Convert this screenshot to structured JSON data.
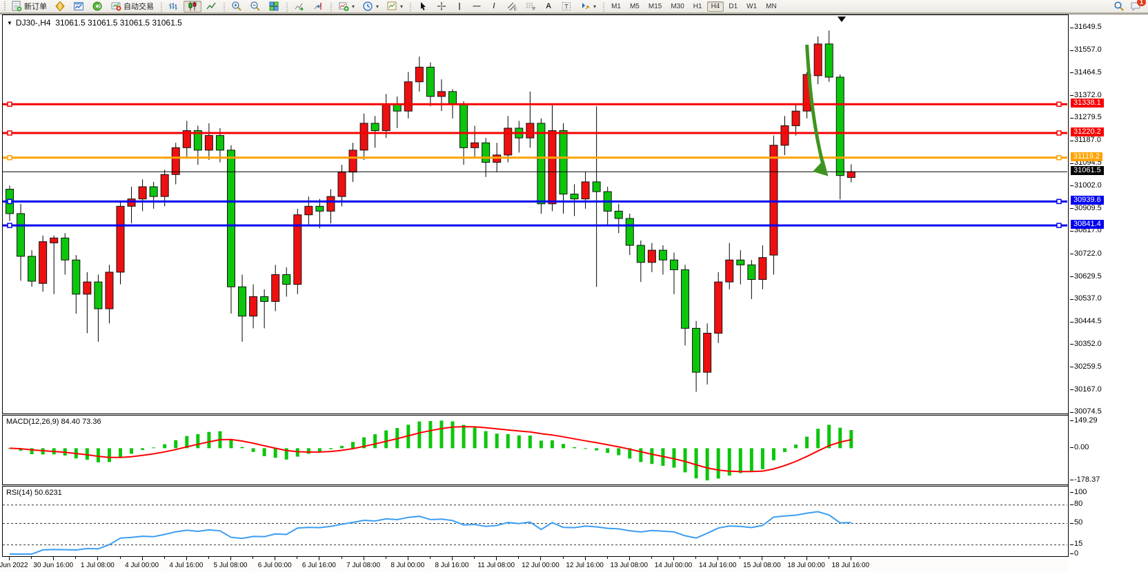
{
  "toolbar": {
    "new_order_label": "新订单",
    "autotrading_label": "自动交易",
    "timeframes": [
      "M1",
      "M5",
      "M15",
      "M30",
      "H1",
      "H4",
      "D1",
      "W1",
      "MN"
    ],
    "active_timeframe": "H4",
    "chat_badge": "1",
    "tool_glyphs": {
      "vline": "|",
      "hline": "—",
      "trendline": "/",
      "channel": "∥",
      "fibo": "F",
      "text": "A",
      "label": "T"
    }
  },
  "chart": {
    "symbol_period": "DJ30-,H4",
    "ohlc_text": "31061.5 31061.5 31061.5 31061.5"
  },
  "macd_panel": {
    "label": "MACD(12,26,9)",
    "values": "84.40 73.36"
  },
  "rsi_panel": {
    "label": "RSI(14)",
    "value": "50.6231"
  },
  "chart_data": {
    "type": "candlestick",
    "symbol": "DJ30-",
    "timeframe": "H4",
    "title": "DJ30-,H4 31061.5 31061.5 31061.5 31061.5",
    "ylim": [
      30071,
      31703
    ],
    "price_ticks": [
      "31649.5",
      "31557.0",
      "31464.5",
      "31372.0",
      "31279.5",
      "31187.0",
      "31094.5",
      "31002.0",
      "30909.5",
      "30817.0",
      "30722.0",
      "30629.5",
      "30537.0",
      "30444.5",
      "30352.0",
      "30259.5",
      "30167.0",
      "30074.5"
    ],
    "time_labels": [
      "30 Jun 2022",
      "30 Jun 16:00",
      "1 Jul 08:00",
      "4 Jul 00:00",
      "4 Jul 16:00",
      "5 Jul 08:00",
      "6 Jul 00:00",
      "6 Jul 16:00",
      "7 Jul 08:00",
      "8 Jul 00:00",
      "8 Jul 16:00",
      "11 Jul 08:00",
      "12 Jul 00:00",
      "12 Jul 16:00",
      "13 Jul 08:00",
      "14 Jul 00:00",
      "14 Jul 16:00",
      "15 Jul 08:00",
      "18 Jul 00:00",
      "18 Jul 16:00"
    ],
    "label_every_bars": 4,
    "colors": {
      "up": "#ee1010",
      "down": "#0cc60c",
      "wick": "#000000",
      "macd_hist": "#0cc60c",
      "macd_signal": "#fe0000",
      "rsi_line": "#3b9df2"
    },
    "hlines": [
      {
        "price": 31338.1,
        "color": "#f60000",
        "width": 3,
        "label": "31338.1",
        "handles": true
      },
      {
        "price": 31220.2,
        "color": "#f60000",
        "width": 3,
        "label": "31220.2",
        "handles": true
      },
      {
        "price": 31119.2,
        "color": "#ffa200",
        "width": 3,
        "label": "31119.2",
        "handles": true
      },
      {
        "price": 31061.5,
        "color": "#000000",
        "width": 1,
        "label": "31061.5",
        "handles": false
      },
      {
        "price": 30939.6,
        "color": "#0000f0",
        "width": 3,
        "label": "30939.6",
        "handles": true
      },
      {
        "price": 30841.4,
        "color": "#0000f0",
        "width": 3,
        "label": "30841.4",
        "handles": true
      }
    ],
    "current_price": 31061.5,
    "arrow": {
      "from_bar": 72.0,
      "from_price": 31582,
      "to_bar": 73.55,
      "to_price": 31075,
      "color": "#3e9420"
    },
    "ohlc": [
      [
        30990,
        31005,
        30860,
        30890
      ],
      [
        30890,
        30930,
        30615,
        30715
      ],
      [
        30715,
        30740,
        30590,
        30613
      ],
      [
        30604,
        30800,
        30570,
        30775
      ],
      [
        30770,
        30800,
        30560,
        30790
      ],
      [
        30790,
        30810,
        30640,
        30700
      ],
      [
        30700,
        30720,
        30480,
        30560
      ],
      [
        30560,
        30650,
        30400,
        30610
      ],
      [
        30610,
        30640,
        30365,
        30500
      ],
      [
        30500,
        30680,
        30440,
        30650
      ],
      [
        30650,
        30940,
        30600,
        30920
      ],
      [
        30920,
        31000,
        30850,
        30950
      ],
      [
        30950,
        31030,
        30900,
        31000
      ],
      [
        31000,
        31020,
        30910,
        30960
      ],
      [
        30960,
        31070,
        30920,
        31050
      ],
      [
        31050,
        31180,
        31010,
        31160
      ],
      [
        31160,
        31270,
        31120,
        31230
      ],
      [
        31230,
        31250,
        31090,
        31150
      ],
      [
        31150,
        31260,
        31110,
        31210
      ],
      [
        31210,
        31240,
        31100,
        31150
      ],
      [
        31150,
        31170,
        30480,
        30590
      ],
      [
        30590,
        30640,
        30365,
        30470
      ],
      [
        30470,
        30600,
        30420,
        30550
      ],
      [
        30550,
        30580,
        30420,
        30530
      ],
      [
        30530,
        30680,
        30490,
        30640
      ],
      [
        30640,
        30670,
        30550,
        30600
      ],
      [
        30600,
        30910,
        30560,
        30885
      ],
      [
        30885,
        30960,
        30840,
        30920
      ],
      [
        30920,
        30950,
        30830,
        30900
      ],
      [
        30900,
        30990,
        30850,
        30960
      ],
      [
        30960,
        31090,
        30920,
        31060
      ],
      [
        31060,
        31180,
        31020,
        31150
      ],
      [
        31150,
        31300,
        31110,
        31260
      ],
      [
        31260,
        31290,
        31160,
        31230
      ],
      [
        31230,
        31380,
        31200,
        31340
      ],
      [
        31340,
        31370,
        31240,
        31310
      ],
      [
        31310,
        31470,
        31280,
        31430
      ],
      [
        31430,
        31533,
        31390,
        31490
      ],
      [
        31490,
        31510,
        31330,
        31370
      ],
      [
        31370,
        31440,
        31310,
        31390
      ],
      [
        31390,
        31400,
        31280,
        31340
      ],
      [
        31340,
        31350,
        31090,
        31160
      ],
      [
        31160,
        31250,
        31120,
        31180
      ],
      [
        31180,
        31200,
        31040,
        31100
      ],
      [
        31100,
        31180,
        31060,
        31130
      ],
      [
        31130,
        31290,
        31100,
        31240
      ],
      [
        31240,
        31270,
        31140,
        31200
      ],
      [
        31200,
        31390,
        31160,
        31260
      ],
      [
        31260,
        31280,
        30890,
        30930
      ],
      [
        30930,
        31340,
        30900,
        31230
      ],
      [
        31230,
        31260,
        30890,
        30970
      ],
      [
        30970,
        31010,
        30880,
        30950
      ],
      [
        30950,
        31060,
        30910,
        31020
      ],
      [
        31020,
        31330,
        30590,
        30980
      ],
      [
        30980,
        31000,
        30840,
        30900
      ],
      [
        30900,
        30930,
        30810,
        30870
      ],
      [
        30870,
        30890,
        30720,
        30760
      ],
      [
        30760,
        30780,
        30610,
        30690
      ],
      [
        30690,
        30770,
        30650,
        30740
      ],
      [
        30740,
        30760,
        30640,
        30700
      ],
      [
        30700,
        30730,
        30560,
        30660
      ],
      [
        30660,
        30680,
        30350,
        30420
      ],
      [
        30420,
        30450,
        30160,
        30240
      ],
      [
        30240,
        30440,
        30190,
        30400
      ],
      [
        30400,
        30650,
        30360,
        30610
      ],
      [
        30610,
        30770,
        30580,
        30700
      ],
      [
        30700,
        30740,
        30600,
        30680
      ],
      [
        30680,
        30700,
        30540,
        30620
      ],
      [
        30620,
        30760,
        30580,
        30710
      ],
      [
        30720,
        31210,
        30640,
        31170
      ],
      [
        31170,
        31290,
        31130,
        31250
      ],
      [
        31250,
        31340,
        31210,
        31310
      ],
      [
        31310,
        31470,
        31280,
        31460
      ],
      [
        31455,
        31616,
        31420,
        31585
      ],
      [
        31585,
        31640,
        31430,
        31449
      ],
      [
        31449,
        31460,
        30948,
        31046
      ],
      [
        31038,
        31092,
        31018,
        31061.5
      ]
    ],
    "indicators": {
      "macd": {
        "fast": 12,
        "slow": 26,
        "signal": 9,
        "current_values": "84.40 73.36",
        "axis_labels": [
          "149.29",
          "0.00",
          "-178.37"
        ],
        "vmax": 180,
        "vmin": -200
      },
      "rsi": {
        "period": 14,
        "current_value": "50.6231",
        "axis_labels": [
          "100",
          "80",
          "50",
          "15",
          "0"
        ],
        "levels": [
          80,
          50,
          15
        ]
      }
    }
  }
}
